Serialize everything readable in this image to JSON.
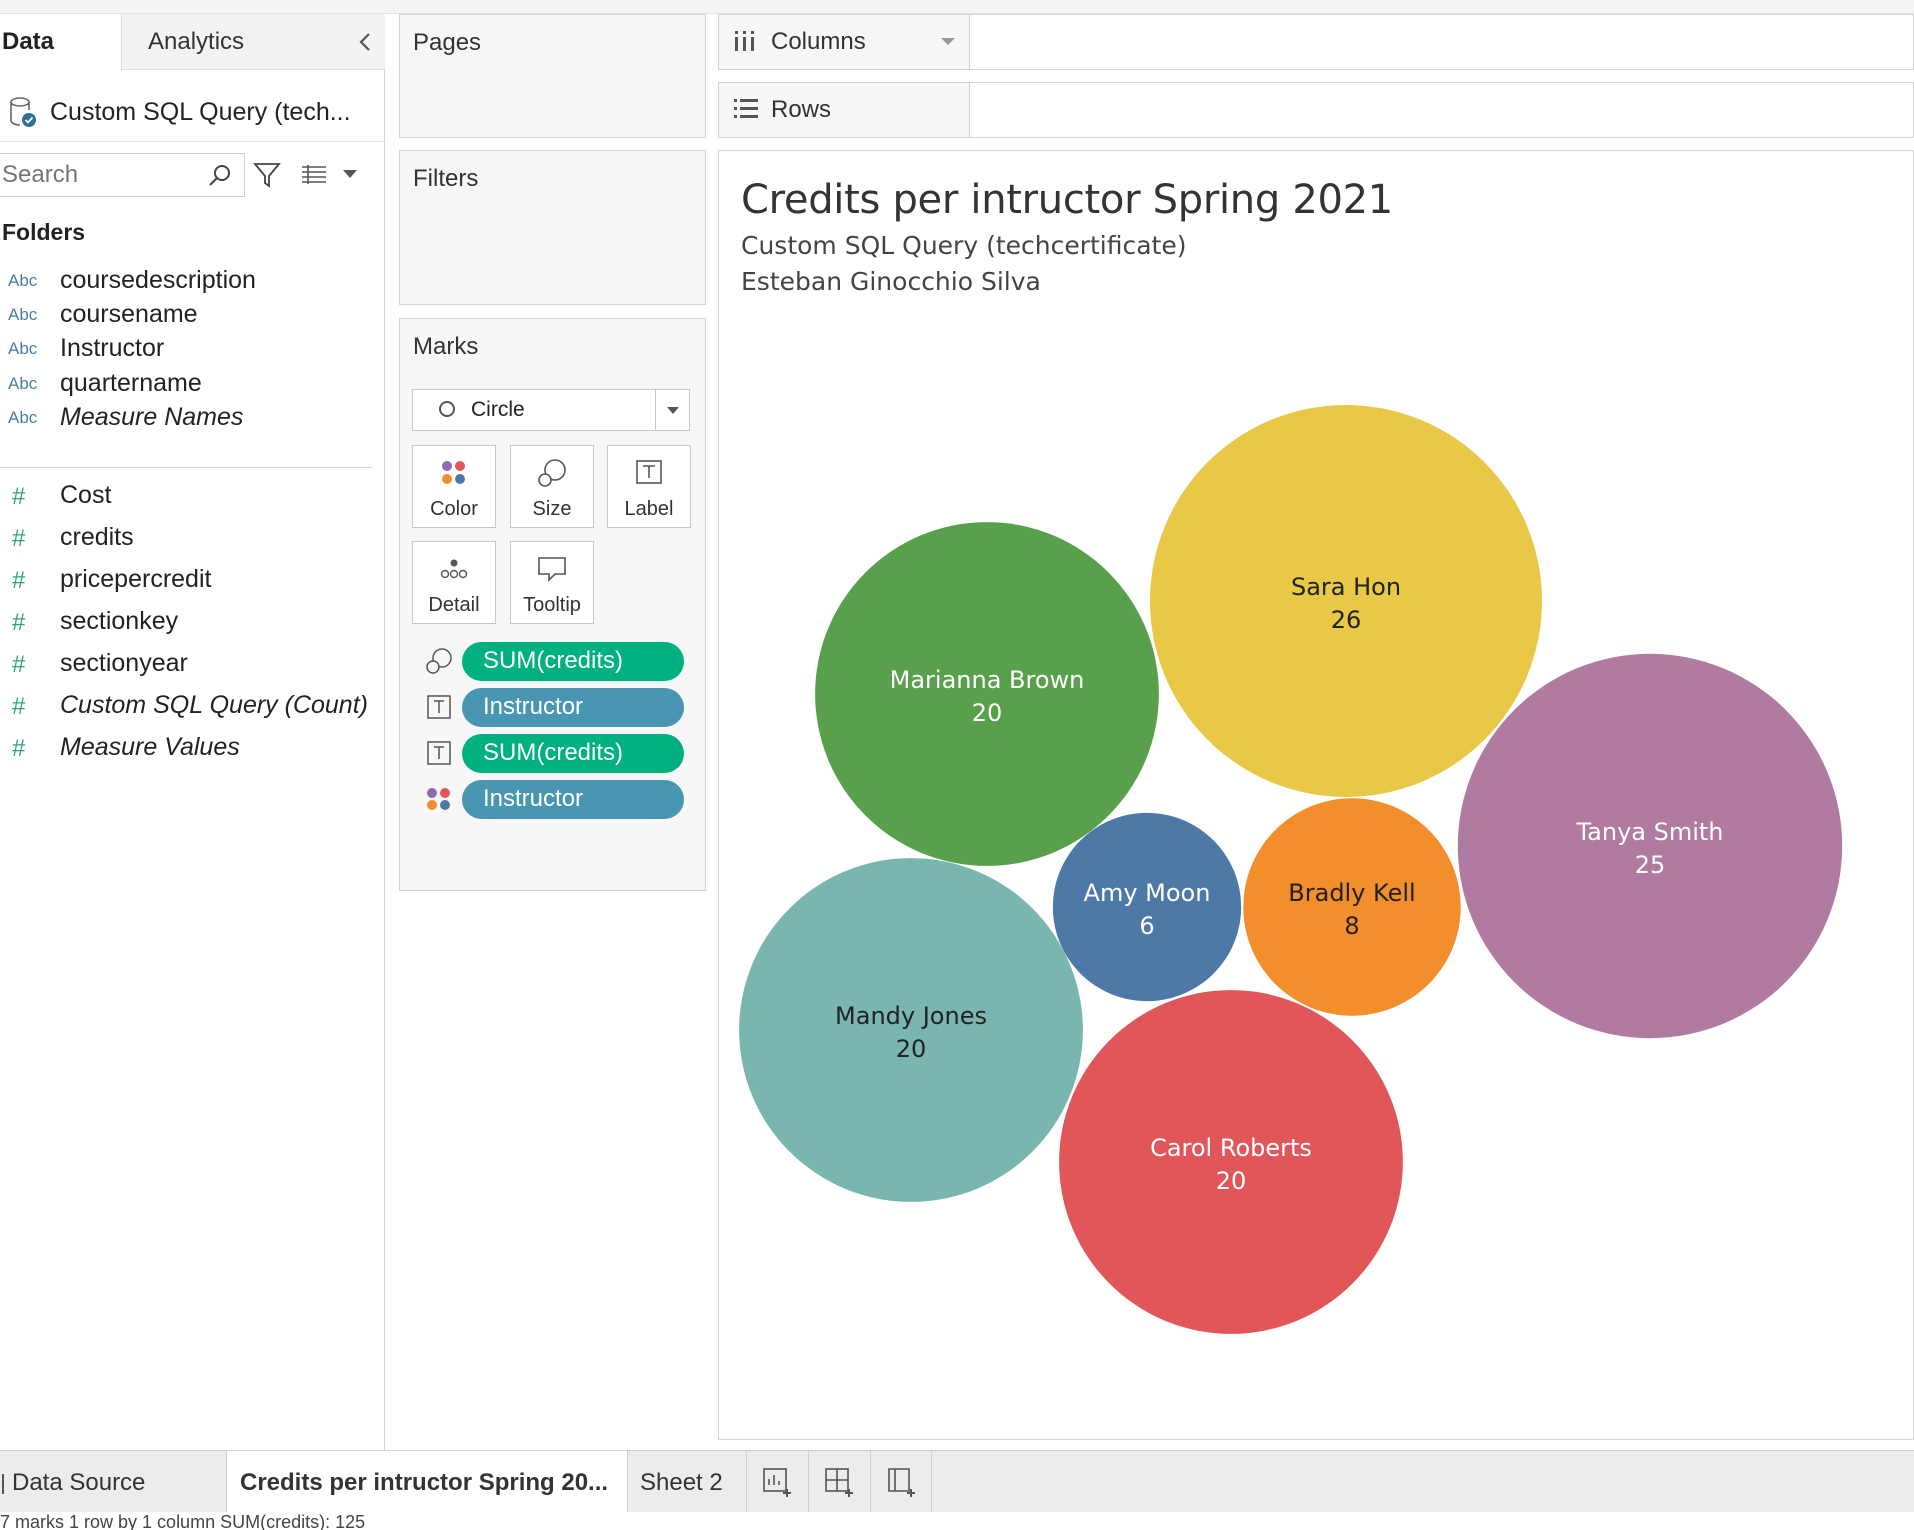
{
  "left_pane": {
    "tabs": {
      "data": "Data",
      "analytics": "Analytics"
    },
    "datasource": "Custom SQL Query (tech...",
    "search": {
      "placeholder": "Search"
    },
    "folders_label": "Folders",
    "dimensions": [
      {
        "type": "Abc",
        "name": "coursedescription"
      },
      {
        "type": "Abc",
        "name": "coursename"
      },
      {
        "type": "Abc",
        "name": "Instructor"
      },
      {
        "type": "Abc",
        "name": "quartername"
      },
      {
        "type": "Abc",
        "name": "Measure Names"
      }
    ],
    "measures": [
      {
        "name": "Cost"
      },
      {
        "name": "credits"
      },
      {
        "name": "pricepercredit"
      },
      {
        "name": "sectionkey"
      },
      {
        "name": "sectionyear"
      },
      {
        "name": "Custom SQL Query (Count)"
      },
      {
        "name": "Measure Values"
      }
    ]
  },
  "cards": {
    "pages": "Pages",
    "filters": "Filters",
    "marks": {
      "title": "Marks",
      "mark_type": "Circle",
      "buttons": {
        "color": "Color",
        "size": "Size",
        "label": "Label",
        "detail": "Detail",
        "tooltip": "Tooltip"
      },
      "pills": [
        "SUM(credits)",
        "Instructor",
        "SUM(credits)",
        "Instructor"
      ]
    }
  },
  "shelves": {
    "columns": "Columns",
    "rows": "Rows"
  },
  "view": {
    "title": "Credits per intructor Spring 2021",
    "subtitle1": "Custom SQL Query (techcertificate)",
    "subtitle2": "Esteban Ginocchio Silva"
  },
  "chart_data": {
    "type": "packed-bubble",
    "size_measure": "SUM(credits)",
    "color_dimension": "Instructor",
    "bubbles": [
      {
        "name": "Sara Hon",
        "value": 26,
        "color": "#e9c847"
      },
      {
        "name": "Marianna Brown",
        "value": 20,
        "color": "#58a04c"
      },
      {
        "name": "Tanya Smith",
        "value": 25,
        "color": "#b07aa1"
      },
      {
        "name": "Amy Moon",
        "value": 6,
        "color": "#4e79a7"
      },
      {
        "name": "Bradly Kell",
        "value": 8,
        "color": "#f28e2b"
      },
      {
        "name": "Mandy Jones",
        "value": 20,
        "color": "#7ab6b0"
      },
      {
        "name": "Carol Roberts",
        "value": 20,
        "color": "#e15759"
      }
    ]
  },
  "sheet_tabs": [
    "Data Source",
    "Credits per intructor Spring 20...",
    "Sheet 2"
  ],
  "status_bar": "7 marks   1 row by 1 column   SUM(credits): 125"
}
